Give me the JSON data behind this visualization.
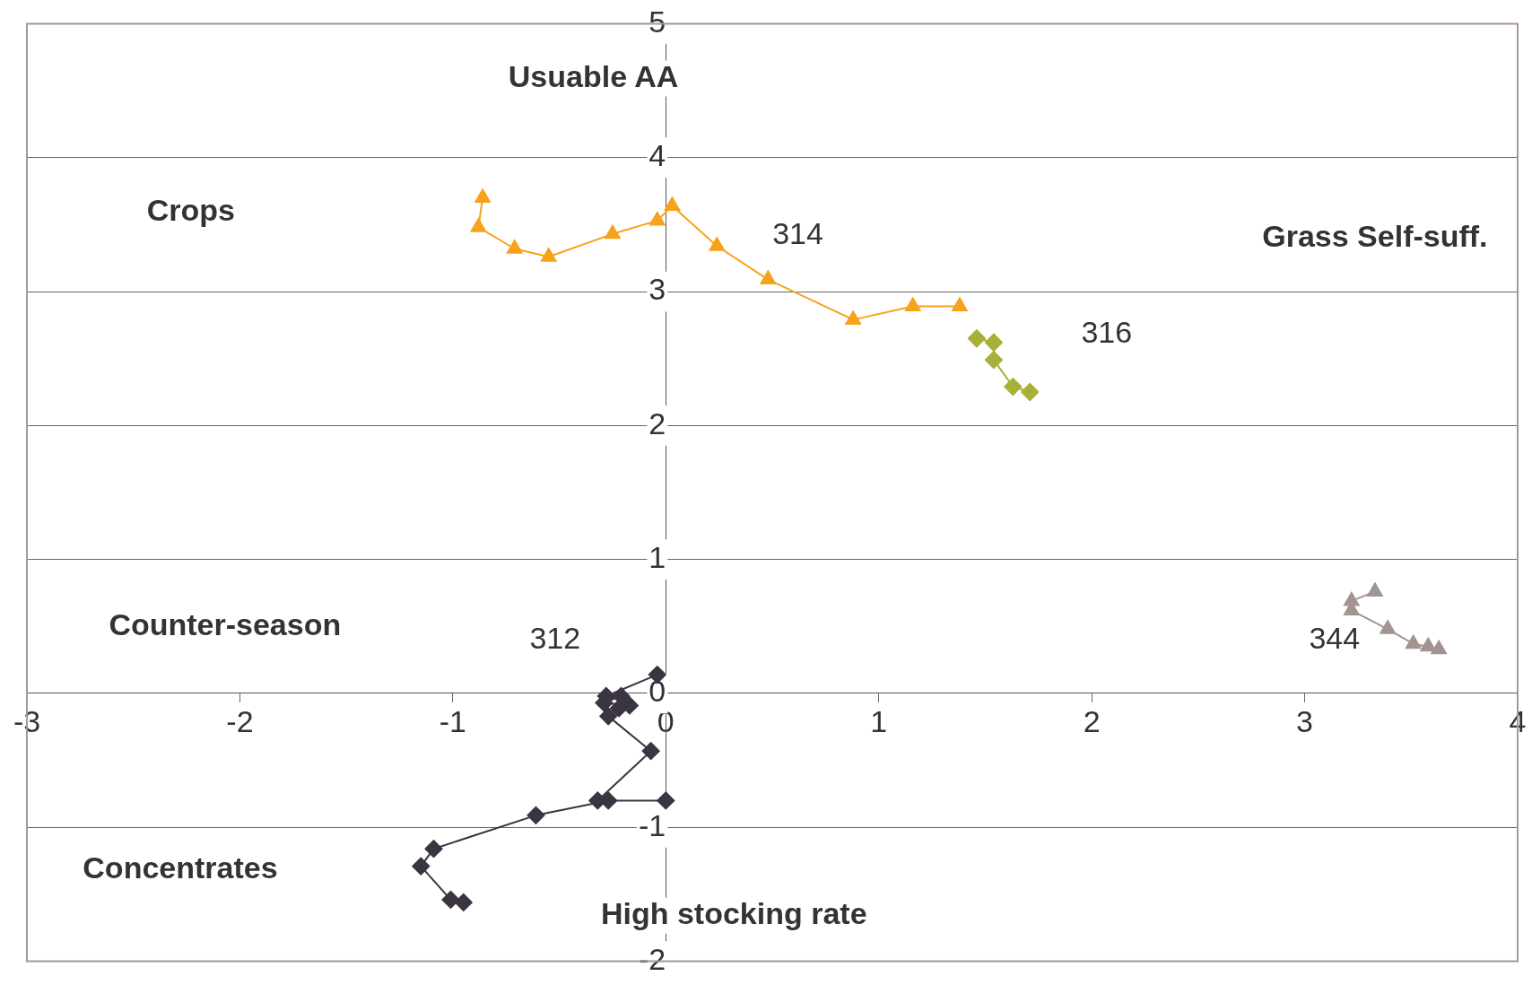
{
  "chart_data": {
    "type": "line",
    "annotations": [
      "Usuable AA",
      "Crops",
      "Grass Self-suff.",
      "Counter-season",
      "Concentrates",
      "High stocking rate"
    ],
    "xlim": [
      -3,
      4
    ],
    "xticks": [
      -3,
      -2,
      -1,
      0,
      1,
      2,
      3,
      4
    ],
    "ylim": [
      -2,
      5
    ],
    "yticks": [
      -2,
      -1,
      0,
      1,
      2,
      3,
      4,
      5
    ],
    "grid": "y",
    "legend": false,
    "line_style": "solid",
    "series": [
      {
        "name": "314",
        "color": "#f7a21b",
        "marker": "triangle",
        "x": [
          -0.86,
          -0.88,
          -0.71,
          -0.55,
          -0.25,
          -0.04,
          0.03,
          0.24,
          0.48,
          0.88,
          1.16,
          1.38
        ],
        "values": [
          3.7,
          3.48,
          3.32,
          3.26,
          3.43,
          3.53,
          3.64,
          3.34,
          3.09,
          2.79,
          2.89,
          2.89
        ]
      },
      {
        "name": "316",
        "color": "#a8b03a",
        "marker": "diamond",
        "x": [
          1.46,
          1.54,
          1.54,
          1.63,
          1.71
        ],
        "values": [
          2.65,
          2.62,
          2.49,
          2.29,
          2.25
        ]
      },
      {
        "name": "312",
        "color": "#3a3540",
        "marker": "diamond",
        "x": [
          -0.04,
          -0.25,
          -0.28,
          -0.21,
          -0.29,
          -0.17,
          -0.22,
          -0.27,
          -0.07,
          -0.32,
          0.0,
          -0.27,
          -0.61,
          -1.09,
          -1.15,
          -1.01,
          -0.95
        ],
        "values": [
          0.14,
          null,
          -0.02,
          -0.02,
          -0.07,
          -0.09,
          -0.11,
          -0.17,
          -0.43,
          -0.8,
          -0.8,
          -0.8,
          -0.91,
          -1.16,
          -1.29,
          -1.54,
          -1.56
        ]
      },
      {
        "name": "344",
        "color": "#a39490",
        "marker": "triangle",
        "x": [
          3.33,
          3.22,
          3.22,
          3.39,
          3.51,
          3.58,
          3.63
        ],
        "values": [
          0.76,
          0.69,
          0.62,
          0.48,
          0.37,
          0.35,
          0.33
        ]
      }
    ]
  }
}
